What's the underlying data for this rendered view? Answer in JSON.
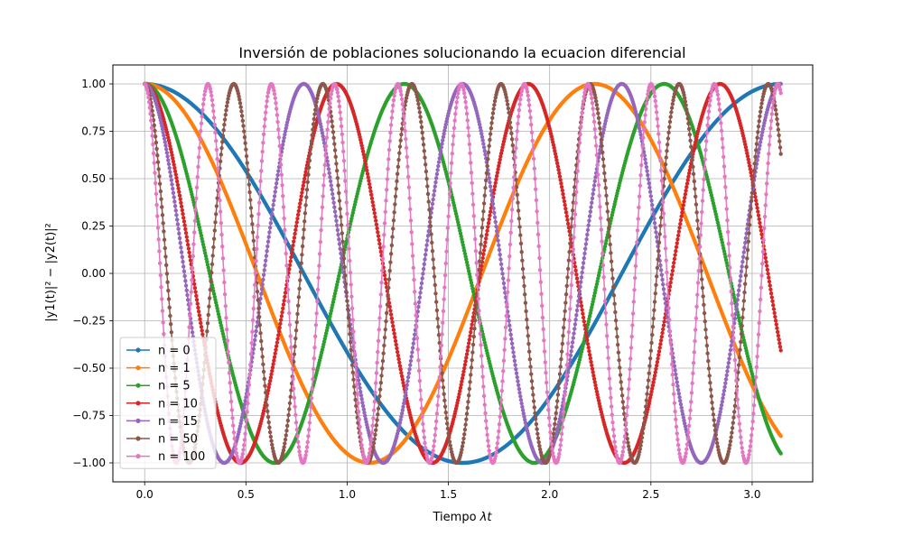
{
  "chart_data": {
    "type": "line",
    "title": "Inversión de poblaciones solucionando la ecuacion diferencial",
    "xlabel_text": "Tiempo ",
    "xlabel_math": "λt",
    "ylabel": "|y1(t)|² − |y2(t)|²",
    "xlim": [
      -0.157,
      3.299
    ],
    "ylim": [
      -1.1,
      1.1
    ],
    "x_range": [
      0,
      3.1416
    ],
    "n_points": 1000,
    "xticks": [
      0.0,
      0.5,
      1.0,
      1.5,
      2.0,
      2.5,
      3.0
    ],
    "xtick_labels": [
      "0.0",
      "0.5",
      "1.0",
      "1.5",
      "2.0",
      "2.5",
      "3.0"
    ],
    "yticks": [
      -1.0,
      -0.75,
      -0.5,
      -0.25,
      0.0,
      0.25,
      0.5,
      0.75,
      1.0
    ],
    "ytick_labels": [
      "−1.00",
      "−0.75",
      "−0.50",
      "−0.25",
      "0.00",
      "0.25",
      "0.50",
      "0.75",
      "1.00"
    ],
    "grid": true,
    "legend_position": "lower-left",
    "formula": "cos(2*sqrt(n+1)*t)",
    "series": [
      {
        "name": "n = 0",
        "n": 0,
        "color": "#1f77b4"
      },
      {
        "name": "n = 1",
        "n": 1,
        "color": "#ff7f0e"
      },
      {
        "name": "n = 5",
        "n": 5,
        "color": "#2ca02c"
      },
      {
        "name": "n = 10",
        "n": 10,
        "color": "#d62728"
      },
      {
        "name": "n = 15",
        "n": 15,
        "color": "#9467bd"
      },
      {
        "name": "n = 50",
        "n": 50,
        "color": "#8c564b"
      },
      {
        "name": "n = 100",
        "n": 100,
        "color": "#e377c2"
      }
    ]
  }
}
